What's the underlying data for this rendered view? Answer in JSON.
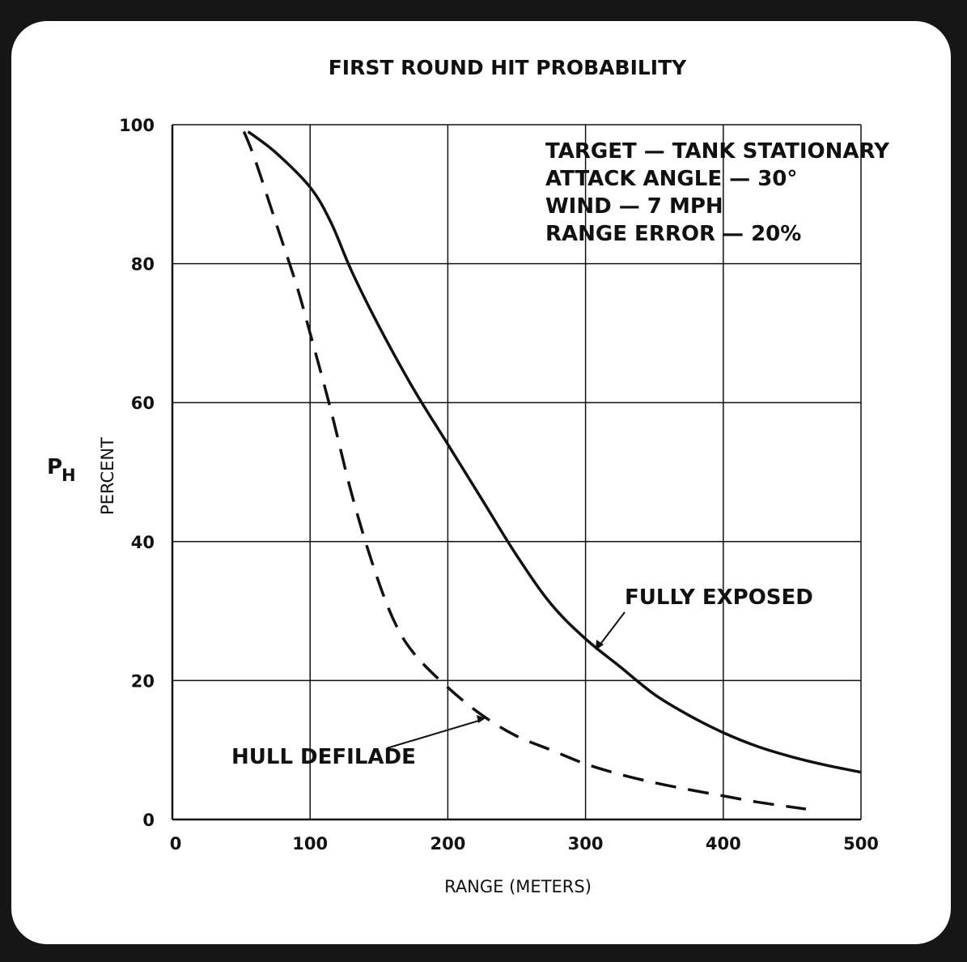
{
  "chart_data": {
    "type": "line",
    "title": "FIRST ROUND HIT PROBABILITY",
    "xlabel": "RANGE (METERS)",
    "ylabel_main": "P",
    "ylabel_sub": "H",
    "ylabel_unit": "PERCENT",
    "xlim": [
      0,
      500
    ],
    "ylim": [
      0,
      100
    ],
    "xticks": [
      0,
      100,
      200,
      300,
      400,
      500
    ],
    "yticks": [
      0,
      20,
      40,
      60,
      80,
      100
    ],
    "grid": true,
    "conditions": [
      "TARGET — TANK STATIONARY",
      "ATTACK ANGLE — 30°",
      "WIND — 7 MPH",
      "RANGE ERROR — 20%"
    ],
    "series": [
      {
        "name": "FULLY EXPOSED",
        "style": "solid",
        "x": [
          55,
          75,
          100,
          115,
          130,
          150,
          175,
          200,
          225,
          250,
          275,
          300,
          325,
          350,
          375,
          400,
          425,
          450,
          475,
          500
        ],
        "y": [
          99,
          96,
          91,
          86,
          79,
          71,
          62,
          54,
          46,
          38,
          31,
          26,
          22,
          18,
          15,
          12.5,
          10.5,
          9,
          7.8,
          6.8
        ]
      },
      {
        "name": "HULL DEFILADE",
        "style": "dashed",
        "x": [
          52,
          60,
          75,
          90,
          100,
          115,
          130,
          145,
          160,
          175,
          200,
          225,
          250,
          275,
          300,
          325,
          350,
          375,
          400,
          425,
          460
        ],
        "y": [
          99,
          95,
          86,
          77,
          70,
          59,
          47,
          37,
          29,
          24,
          19,
          15,
          12,
          10,
          8,
          6.5,
          5.3,
          4.3,
          3.4,
          2.5,
          1.5
        ]
      }
    ],
    "annotations": [
      {
        "text": "FULLY EXPOSED",
        "target_series": "FULLY EXPOSED"
      },
      {
        "text": "HULL DEFILADE",
        "target_series": "HULL DEFILADE"
      }
    ]
  }
}
